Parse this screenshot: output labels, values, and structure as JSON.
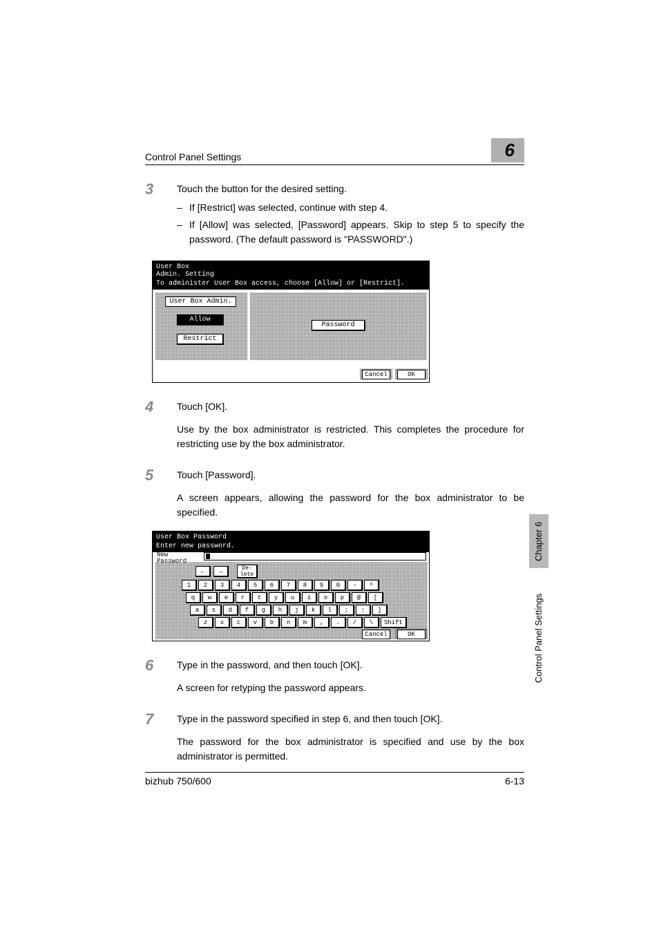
{
  "header": {
    "title": "Control Panel Settings",
    "chapter_number": "6"
  },
  "side": {
    "chapter_label": "Chapter 6",
    "section_label": "Control Panel Settings"
  },
  "footer": {
    "model": "bizhub 750/600",
    "page": "6-13"
  },
  "steps": {
    "s3": {
      "num": "3",
      "text": "Touch the button for the desired setting.",
      "b1": "If [Restrict] was selected, continue with step 4.",
      "b2": "If [Allow] was selected, [Password] appears. Skip to step 5 to specify the password. (The default password is \"PASSWORD\".)"
    },
    "s4": {
      "num": "4",
      "text": "Touch [OK].",
      "follow": "Use by the box administrator is restricted. This completes the procedure for restricting use by the box administrator."
    },
    "s5": {
      "num": "5",
      "text": "Touch [Password].",
      "follow": "A screen appears, allowing the password for the box administrator to be specified."
    },
    "s6": {
      "num": "6",
      "text": "Type in the password, and then touch [OK].",
      "follow": "A screen for retyping the password appears."
    },
    "s7": {
      "num": "7",
      "text": "Type in the password specified in step 6, and then touch [OK].",
      "follow": "The password for the box administrator is specified and use by the box administrator is permitted."
    }
  },
  "fig1": {
    "title_l1": "User Box",
    "title_l2": "Admin. Setting",
    "instruction": "To administer User Box access, choose [Allow] or [Restrict].",
    "label": "User Box Admin.",
    "allow": "Allow",
    "restrict": "Restrict",
    "password": "Password",
    "cancel": "Cancel",
    "ok": "OK"
  },
  "fig2": {
    "title": "User Box Password",
    "instruction": "Enter new password.",
    "newpw_l1": "New",
    "newpw_l2": "Password",
    "back": "←",
    "fwd": "→",
    "delete": "De-\nlete",
    "shift": "Shift",
    "cancel": "Cancel",
    "ok": "OK",
    "row1": [
      "1",
      "2",
      "3",
      "4",
      "5",
      "6",
      "7",
      "8",
      "9",
      "0",
      "-",
      "^"
    ],
    "row2": [
      "q",
      "w",
      "e",
      "r",
      "t",
      "y",
      "u",
      "i",
      "o",
      "p",
      "@",
      "["
    ],
    "row3": [
      "a",
      "s",
      "d",
      "f",
      "g",
      "h",
      "j",
      "k",
      "l",
      ";",
      ":",
      "]"
    ],
    "row4": [
      "z",
      "x",
      "c",
      "v",
      "b",
      "n",
      "m",
      ",",
      ".",
      "/",
      "\\"
    ]
  }
}
